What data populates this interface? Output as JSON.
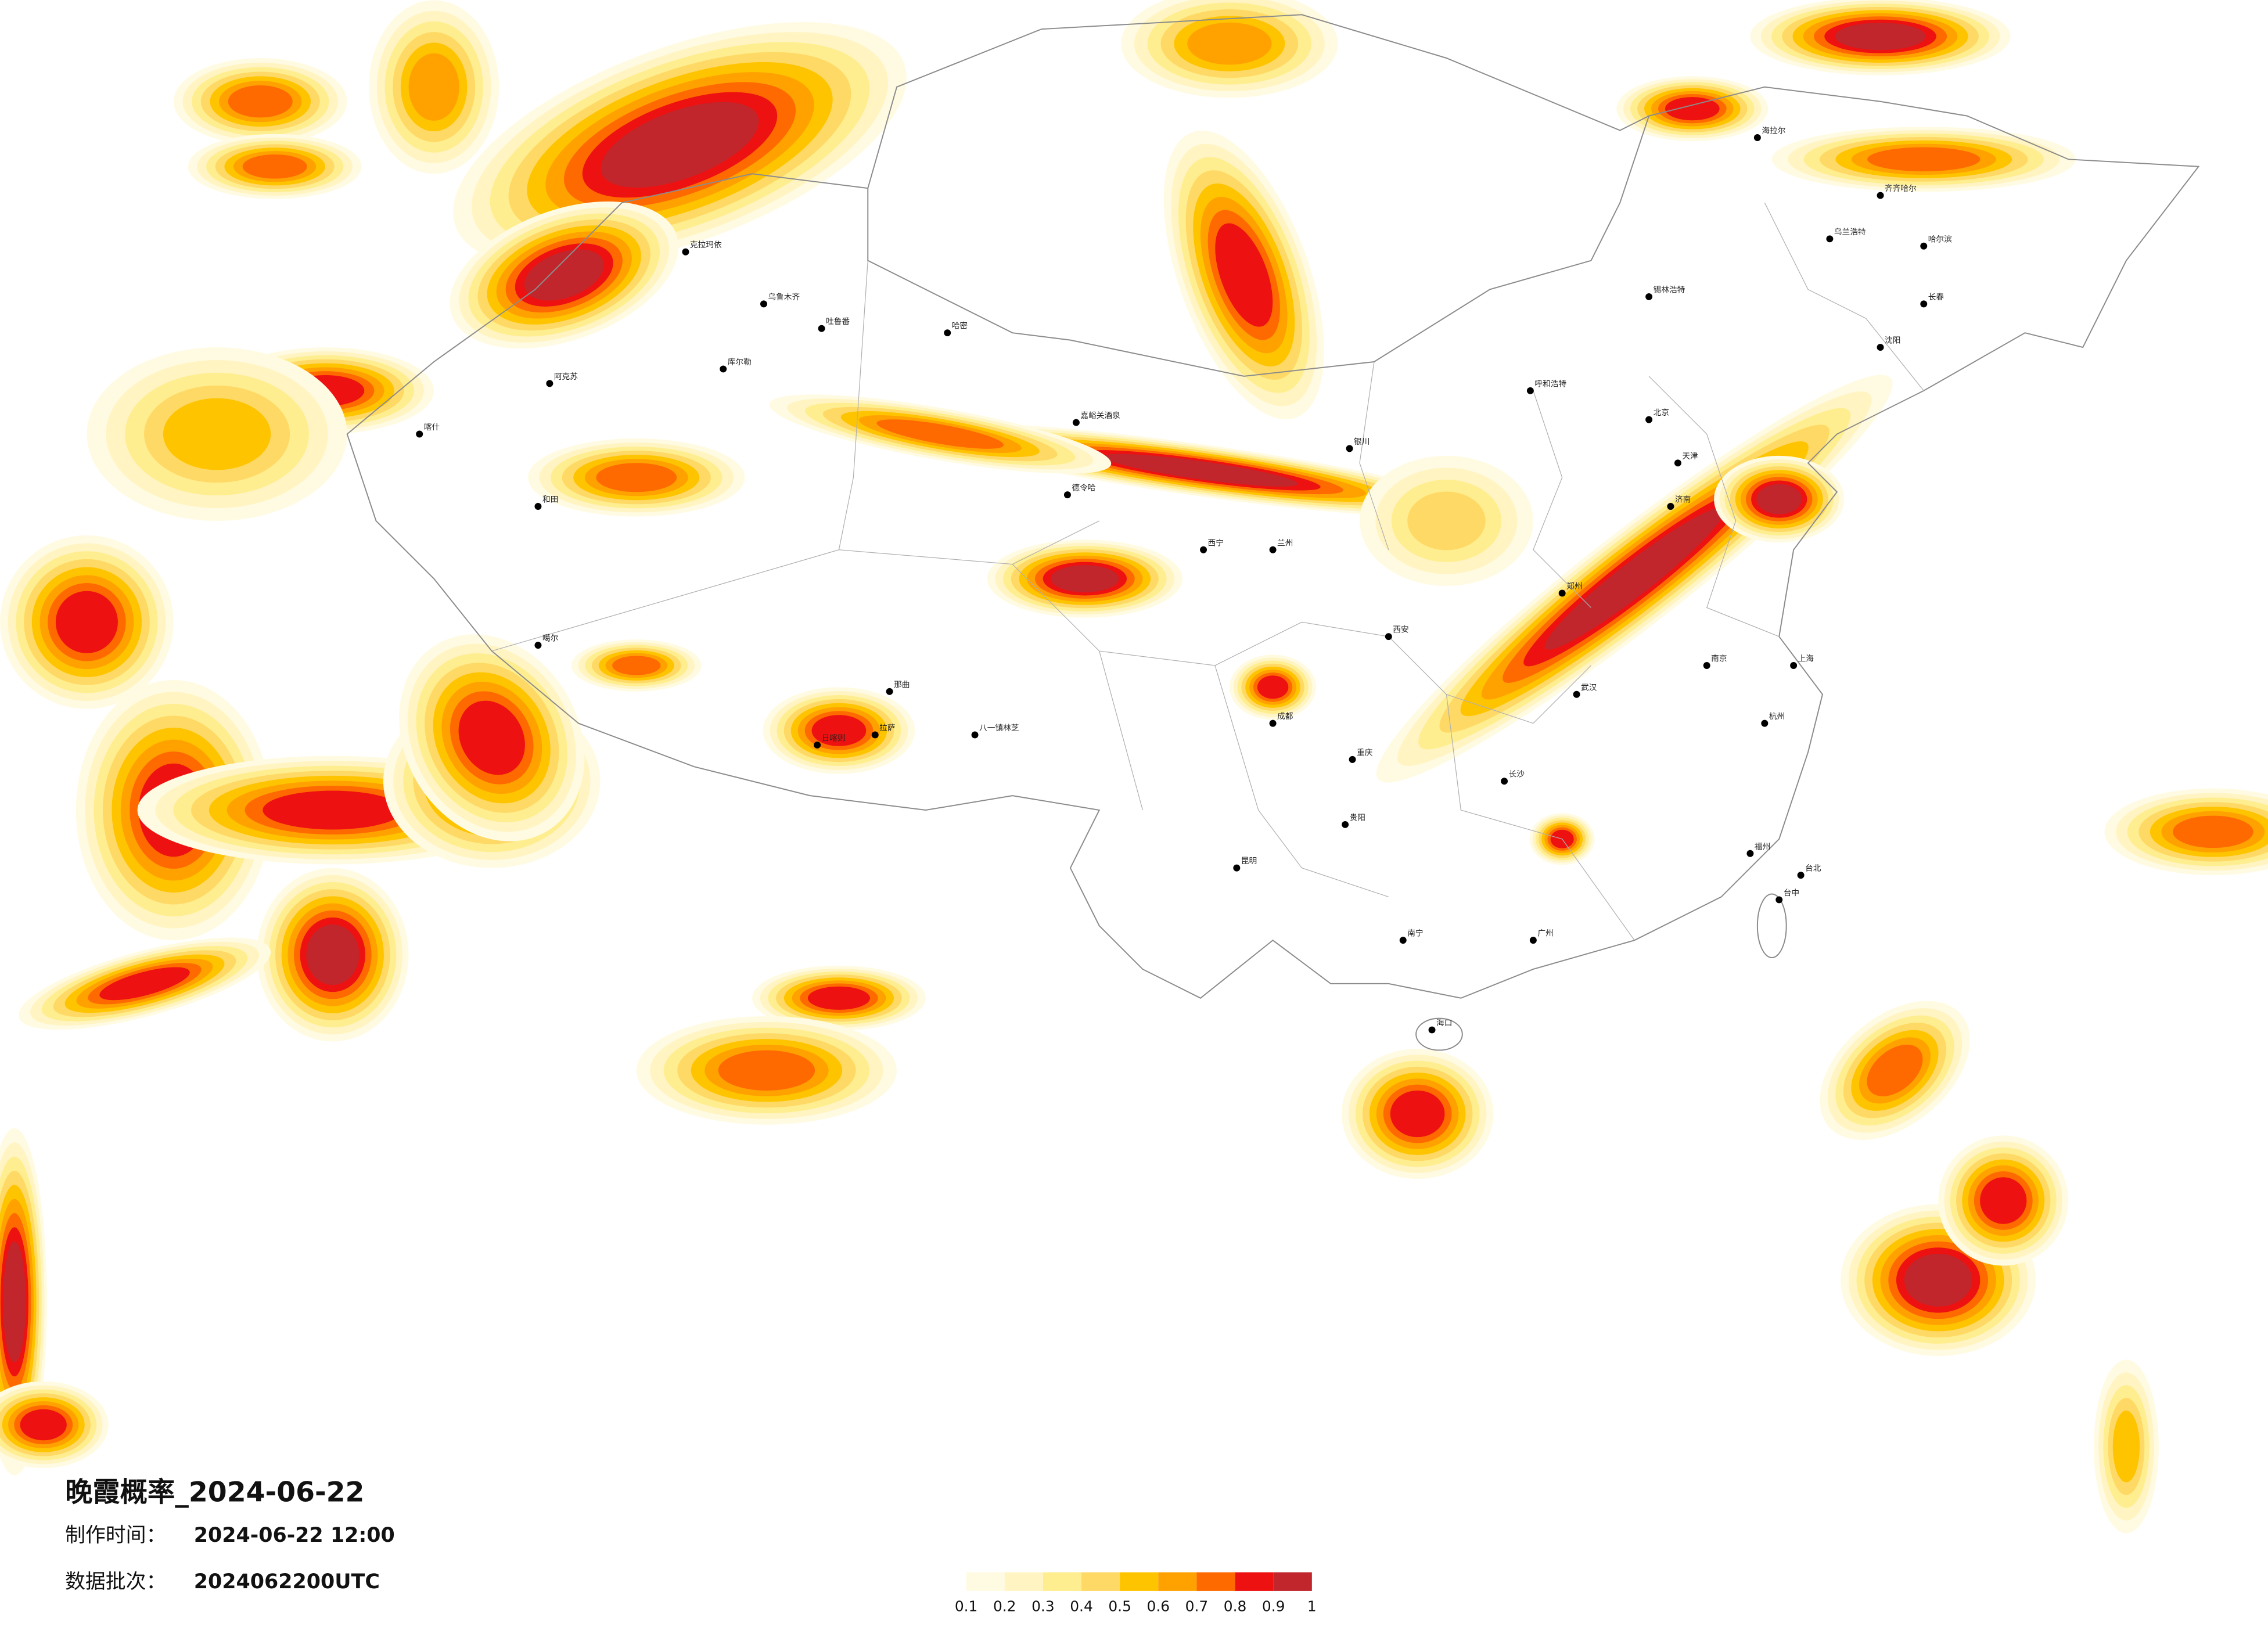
{
  "title": "晚霞概率_2024-06-22",
  "issued": {
    "label": "制作时间：",
    "value": "2024-06-22 12:00"
  },
  "batch": {
    "label": "数据批次：",
    "value": "2024062200UTC"
  },
  "legend": {
    "ticks": [
      0.1,
      0.2,
      0.3,
      0.4,
      0.5,
      0.6,
      0.7,
      0.8,
      0.9,
      1
    ],
    "colors": [
      "#fffbe3",
      "#fff4c2",
      "#ffee8f",
      "#ffd966",
      "#ffc400",
      "#ffa200",
      "#ff6a00",
      "#ee1111",
      "#c0262c"
    ]
  },
  "cities": [
    {
      "name": "克拉玛依"
    },
    {
      "name": "乌鲁木齐"
    },
    {
      "name": "吐鲁番"
    },
    {
      "name": "哈密"
    },
    {
      "name": "库尔勒"
    },
    {
      "name": "阿克苏"
    },
    {
      "name": "和田"
    },
    {
      "name": "喀什"
    },
    {
      "name": "嘉峪关酒泉"
    },
    {
      "name": "德令哈"
    },
    {
      "name": "噶尔"
    },
    {
      "name": "日喀则"
    },
    {
      "name": "拉萨"
    },
    {
      "name": "八一镇林芝"
    },
    {
      "name": "那曲"
    },
    {
      "name": "呼和浩特"
    },
    {
      "name": "银川"
    },
    {
      "name": "西宁"
    },
    {
      "name": "兰州"
    },
    {
      "name": "西安"
    },
    {
      "name": "成都"
    },
    {
      "name": "重庆"
    },
    {
      "name": "昆明"
    },
    {
      "name": "贵阳"
    },
    {
      "name": "南宁"
    },
    {
      "name": "广州"
    },
    {
      "name": "长沙"
    },
    {
      "name": "武汉"
    },
    {
      "name": "郑州"
    },
    {
      "name": "北京"
    },
    {
      "name": "天津"
    },
    {
      "name": "济南"
    },
    {
      "name": "南京"
    },
    {
      "name": "上海"
    },
    {
      "name": "杭州"
    },
    {
      "name": "福州"
    },
    {
      "name": "台北"
    },
    {
      "name": "台中"
    },
    {
      "name": "海口"
    },
    {
      "name": "哈尔滨"
    },
    {
      "name": "长春"
    },
    {
      "name": "沈阳"
    },
    {
      "name": "齐齐哈尔"
    },
    {
      "name": "海拉尔"
    },
    {
      "name": "锡林浩特"
    },
    {
      "name": "乌兰浩特"
    }
  ]
}
